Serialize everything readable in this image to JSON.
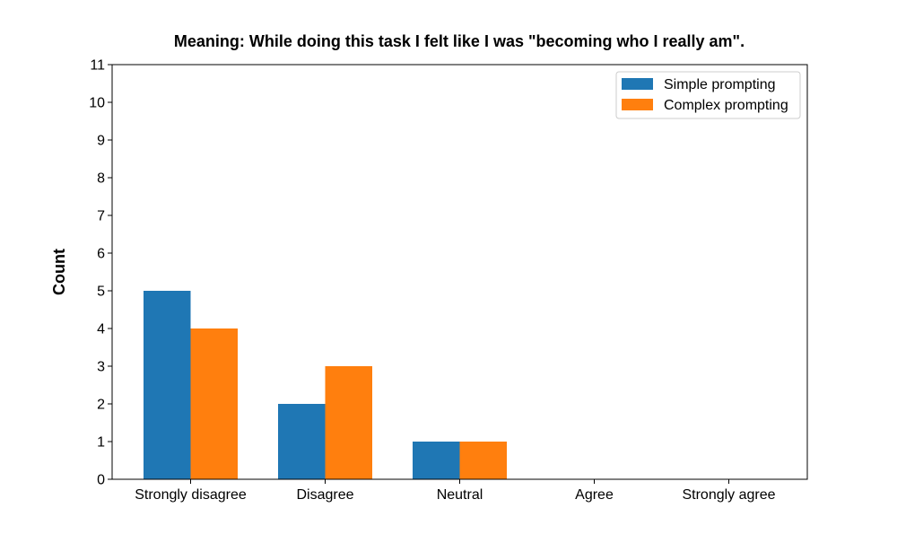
{
  "chart_data": {
    "type": "bar",
    "title": "Meaning: While doing this task I felt like I was \"becoming who I really am\".",
    "xlabel": "",
    "ylabel": "Count",
    "categories": [
      "Strongly disagree",
      "Disagree",
      "Neutral",
      "Agree",
      "Strongly agree"
    ],
    "series": [
      {
        "name": "Simple prompting",
        "values": [
          5,
          2,
          1,
          0,
          0
        ],
        "color": "#1f77b4"
      },
      {
        "name": "Complex prompting",
        "values": [
          4,
          3,
          1,
          0,
          0
        ],
        "color": "#ff7f0e"
      }
    ],
    "ylim": [
      0,
      11
    ],
    "yticks": [
      0,
      1,
      2,
      3,
      4,
      5,
      6,
      7,
      8,
      9,
      10,
      11
    ],
    "grid": false,
    "legend_position": "top-right"
  }
}
